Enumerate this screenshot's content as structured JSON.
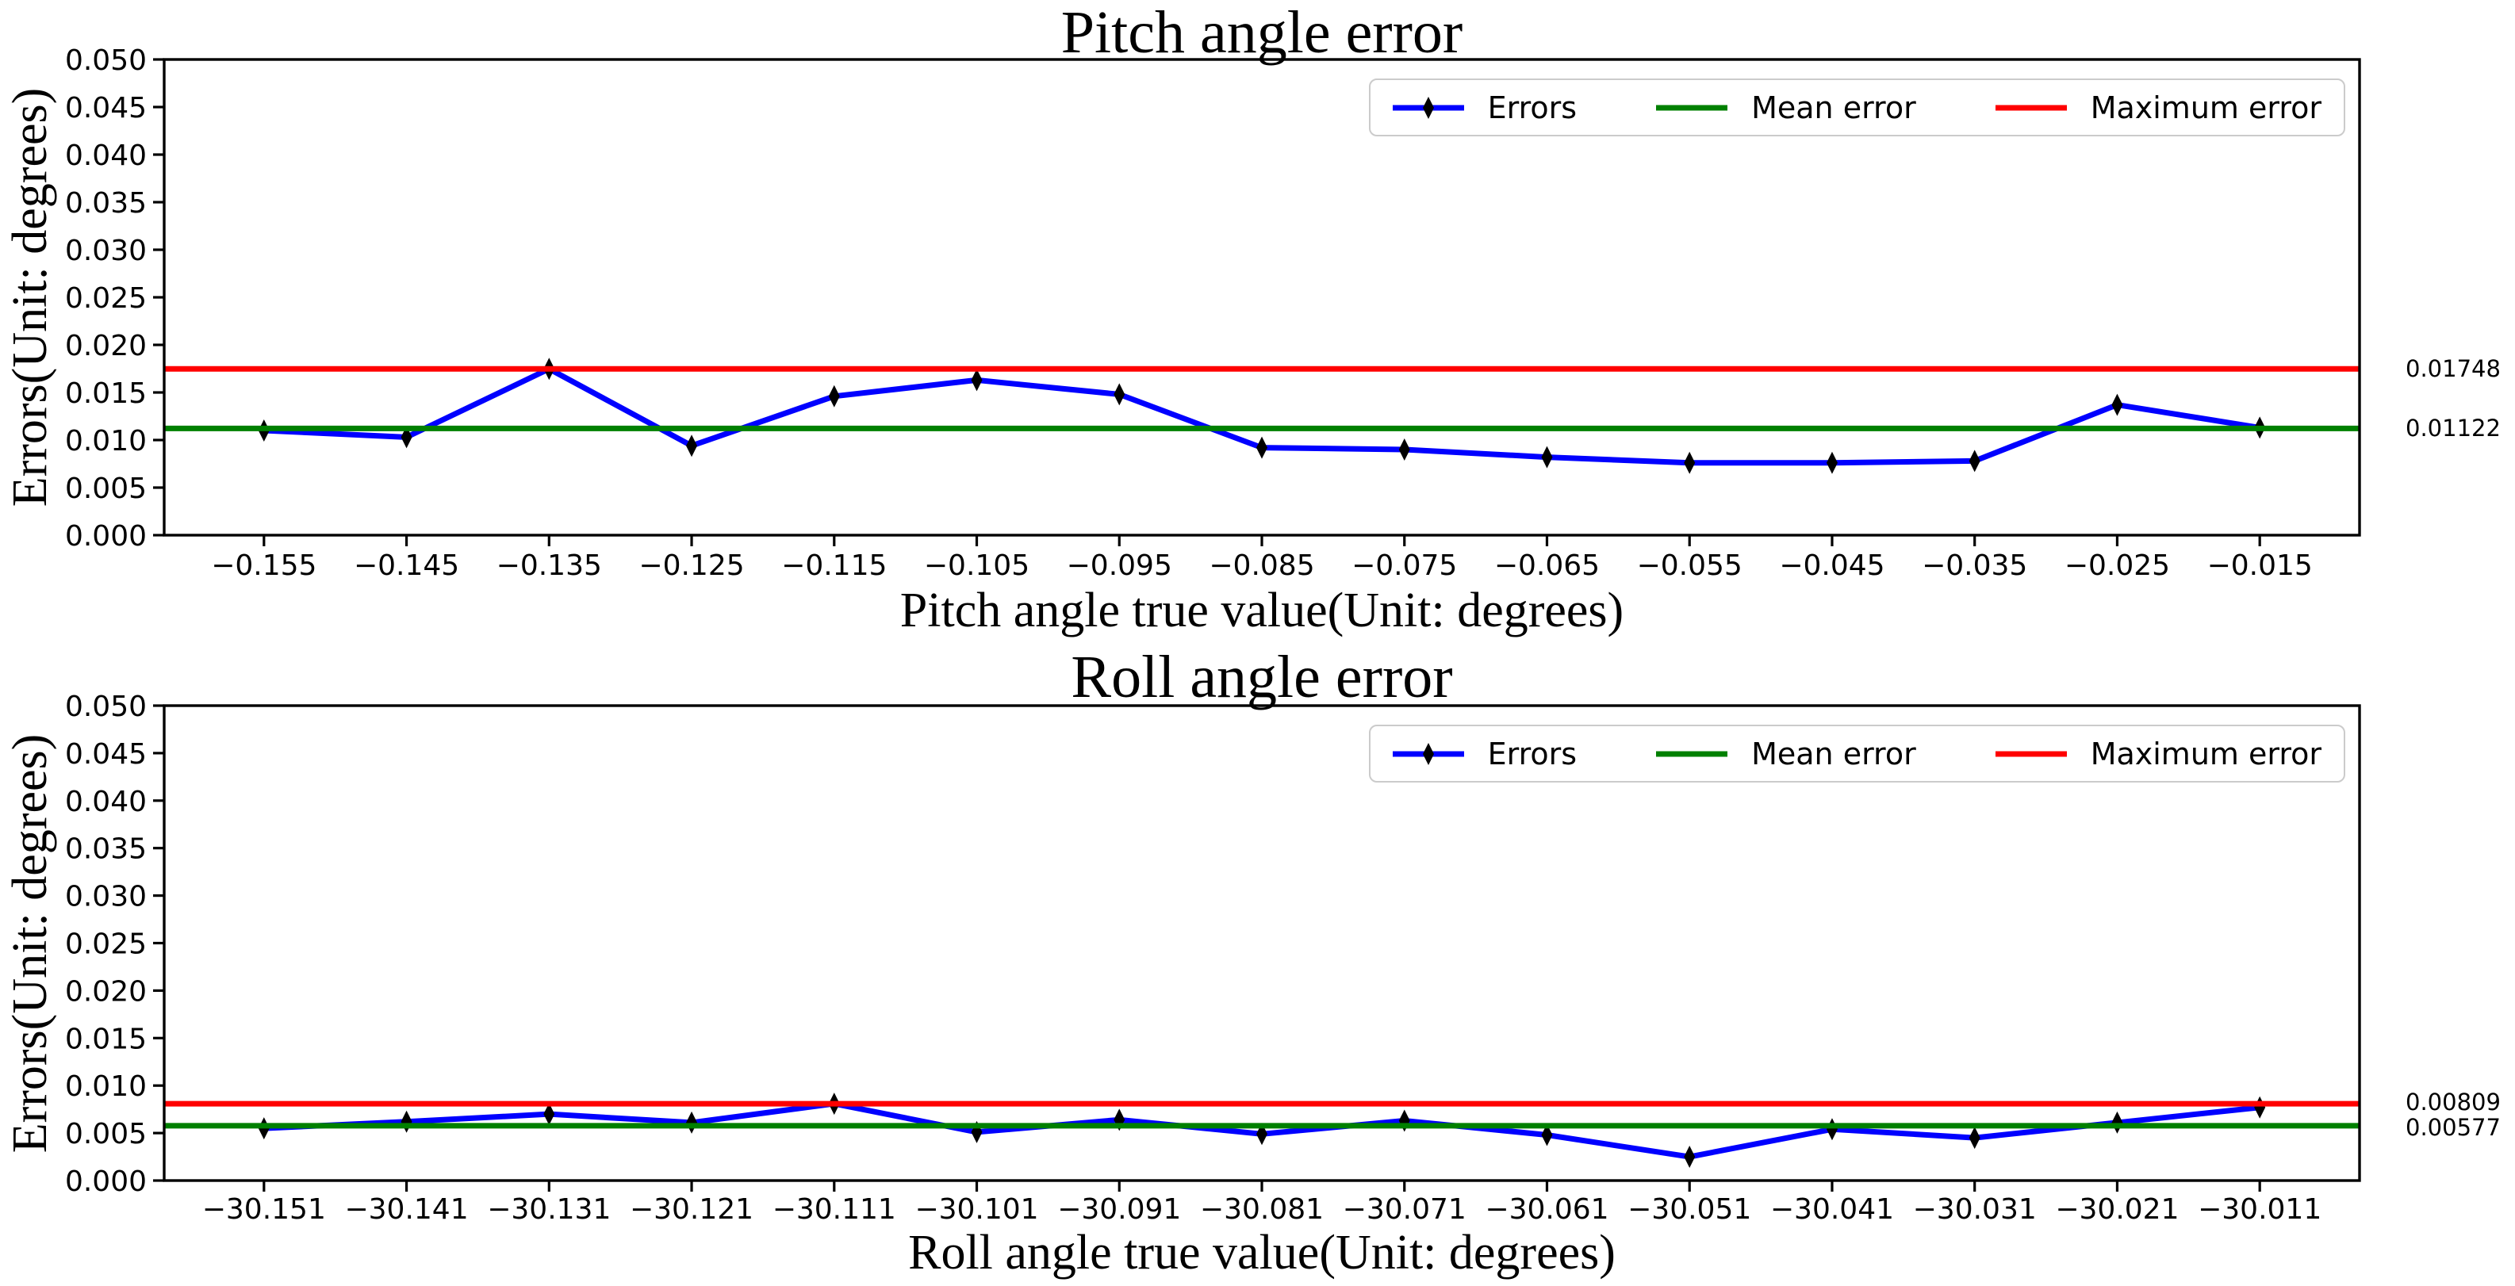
{
  "accent_colors": {
    "errors_line": "#0000ff",
    "marker": "#000000",
    "mean_line": "#008000",
    "max_line": "#ff0000",
    "axis": "#000000",
    "legend_border": "#cbcbcb",
    "background": "#ffffff"
  },
  "chart_data": [
    {
      "type": "line",
      "title": "Pitch angle error",
      "xlabel": "Pitch angle true value(Unit: degrees)",
      "ylabel": "Errors(Unit: degrees)",
      "x": [
        -0.155,
        -0.145,
        -0.135,
        -0.125,
        -0.115,
        -0.105,
        -0.095,
        -0.085,
        -0.075,
        -0.065,
        -0.055,
        -0.045,
        -0.035,
        -0.025,
        -0.015
      ],
      "xtick_labels": [
        "−0.155",
        "−0.145",
        "−0.135",
        "−0.125",
        "−0.115",
        "−0.105",
        "−0.095",
        "−0.085",
        "−0.075",
        "−0.065",
        "−0.055",
        "−0.045",
        "−0.035",
        "−0.025",
        "−0.015"
      ],
      "xlim": [
        -0.162,
        -0.008
      ],
      "ylim": [
        0,
        0.05
      ],
      "ytick_values": [
        0,
        0.005,
        0.01,
        0.015,
        0.02,
        0.025,
        0.03,
        0.035,
        0.04,
        0.045,
        0.05
      ],
      "ytick_labels": [
        "0.000",
        "0.005",
        "0.010",
        "0.015",
        "0.020",
        "0.025",
        "0.030",
        "0.035",
        "0.040",
        "0.045",
        "0.050"
      ],
      "grid": false,
      "legend_position": "upper right",
      "series": [
        {
          "name": "Errors",
          "kind": "line-markers",
          "color": "#0000ff",
          "marker": "thin-diamond",
          "marker_color": "#000000",
          "values": [
            0.011,
            0.0103,
            0.01748,
            0.0094,
            0.0146,
            0.0163,
            0.0148,
            0.0092,
            0.009,
            0.0082,
            0.0076,
            0.0076,
            0.0078,
            0.0137,
            0.0113
          ]
        },
        {
          "name": "Mean error",
          "kind": "hline",
          "color": "#008000",
          "value": 0.01122
        },
        {
          "name": "Maximum error",
          "kind": "hline",
          "color": "#ff0000",
          "value": 0.01748
        }
      ],
      "annotations": [
        {
          "text": "0.01748",
          "value": 0.01748
        },
        {
          "text": "0.01122",
          "value": 0.01122
        }
      ]
    },
    {
      "type": "line",
      "title": "Roll angle error",
      "xlabel": "Roll angle true value(Unit: degrees)",
      "ylabel": "Errors(Unit: degrees)",
      "x": [
        -30.151,
        -30.141,
        -30.131,
        -30.121,
        -30.111,
        -30.101,
        -30.091,
        -30.081,
        -30.071,
        -30.061,
        -30.051,
        -30.041,
        -30.031,
        -30.021,
        -30.011
      ],
      "xtick_labels": [
        "−30.151",
        "−30.141",
        "−30.131",
        "−30.121",
        "−30.111",
        "−30.101",
        "−30.091",
        "−30.081",
        "−30.071",
        "−30.061",
        "−30.051",
        "−30.041",
        "−30.031",
        "−30.021",
        "−30.011"
      ],
      "xlim": [
        -30.158,
        -30.004
      ],
      "ylim": [
        0,
        0.05
      ],
      "ytick_values": [
        0,
        0.005,
        0.01,
        0.015,
        0.02,
        0.025,
        0.03,
        0.035,
        0.04,
        0.045,
        0.05
      ],
      "ytick_labels": [
        "0.000",
        "0.005",
        "0.010",
        "0.015",
        "0.020",
        "0.025",
        "0.030",
        "0.035",
        "0.040",
        "0.045",
        "0.050"
      ],
      "grid": false,
      "legend_position": "upper right",
      "series": [
        {
          "name": "Errors",
          "kind": "line-markers",
          "color": "#0000ff",
          "marker": "thin-diamond",
          "marker_color": "#000000",
          "values": [
            0.0055,
            0.0062,
            0.007,
            0.0061,
            0.00809,
            0.0051,
            0.0064,
            0.0049,
            0.0063,
            0.0048,
            0.0025,
            0.0054,
            0.0045,
            0.0061,
            0.0077
          ]
        },
        {
          "name": "Mean error",
          "kind": "hline",
          "color": "#008000",
          "value": 0.00577
        },
        {
          "name": "Maximum error",
          "kind": "hline",
          "color": "#ff0000",
          "value": 0.00809
        }
      ],
      "annotations": [
        {
          "text": "0.00809",
          "value": 0.00809
        },
        {
          "text": "0.00577",
          "value": 0.00577
        }
      ]
    }
  ]
}
